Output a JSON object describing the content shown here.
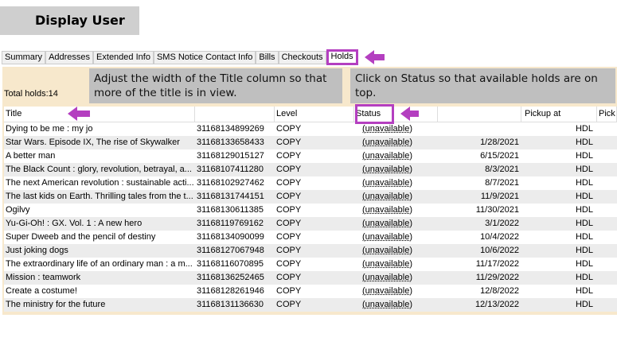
{
  "header": {
    "title": "Display User"
  },
  "tabs": [
    {
      "label": "Summary"
    },
    {
      "label": "Addresses"
    },
    {
      "label": "Extended Info"
    },
    {
      "label": "SMS Notice Contact Info"
    },
    {
      "label": "Bills"
    },
    {
      "label": "Checkouts"
    },
    {
      "label": "Holds",
      "active": true
    }
  ],
  "holds": {
    "total_label": "Total holds:14",
    "columns": [
      "Title",
      "",
      "Level",
      "Status",
      "",
      "Pickup at",
      "Pick"
    ],
    "rows": [
      [
        "Dying to be me : my jo",
        "31168134899269",
        "COPY",
        "(unavailable)",
        "",
        "HDL"
      ],
      [
        "Star Wars. Episode IX, The rise of Skywalker",
        "31168133658433",
        "COPY",
        "(unavailable)",
        "1/28/2021",
        "HDL"
      ],
      [
        "A better man",
        "31168129015127",
        "COPY",
        "(unavailable)",
        "6/15/2021",
        "HDL"
      ],
      [
        "The Black Count : glory, revolution, betrayal, a...",
        "31168107411280",
        "COPY",
        "(unavailable)",
        "8/3/2021",
        "HDL"
      ],
      [
        "The next American revolution : sustainable acti...",
        "31168102927462",
        "COPY",
        "(unavailable)",
        "8/7/2021",
        "HDL"
      ],
      [
        "The last kids on Earth. Thrilling tales from the t...",
        "31168131744151",
        "COPY",
        "(unavailable)",
        "11/9/2021",
        "HDL"
      ],
      [
        "Ogilvy",
        "31168130611385",
        "COPY",
        "(unavailable)",
        "11/30/2021",
        "HDL"
      ],
      [
        "Yu-Gi-Oh! : GX. Vol. 1 : A new hero",
        "31168119769162",
        "COPY",
        "(unavailable)",
        "3/1/2022",
        "HDL"
      ],
      [
        "Super Dweeb and the pencil of destiny",
        "31168134090099",
        "COPY",
        "(unavailable)",
        "10/4/2022",
        "HDL"
      ],
      [
        "Just joking dogs",
        "31168127067948",
        "COPY",
        "(unavailable)",
        "10/6/2022",
        "HDL"
      ],
      [
        "The extraordinary life of an ordinary man : a m...",
        "31168116070895",
        "COPY",
        "(unavailable)",
        "11/17/2022",
        "HDL"
      ],
      [
        "Mission : teamwork",
        "31168136252465",
        "COPY",
        "(unavailable)",
        "11/29/2022",
        "HDL"
      ],
      [
        "Create a costume!",
        "31168128261946",
        "COPY",
        "(unavailable)",
        "12/8/2022",
        "HDL"
      ],
      [
        "The ministry for the future",
        "31168131136630",
        "COPY",
        "(unavailable)",
        "12/13/2022",
        "HDL"
      ]
    ]
  },
  "callouts": {
    "title_tip": "Adjust the width of the Title column so that more of the title is in view.",
    "status_tip": "Click on Status so that available holds are on top."
  },
  "colors": {
    "highlight": "#b43fc0",
    "panel": "#f7e8cc"
  }
}
